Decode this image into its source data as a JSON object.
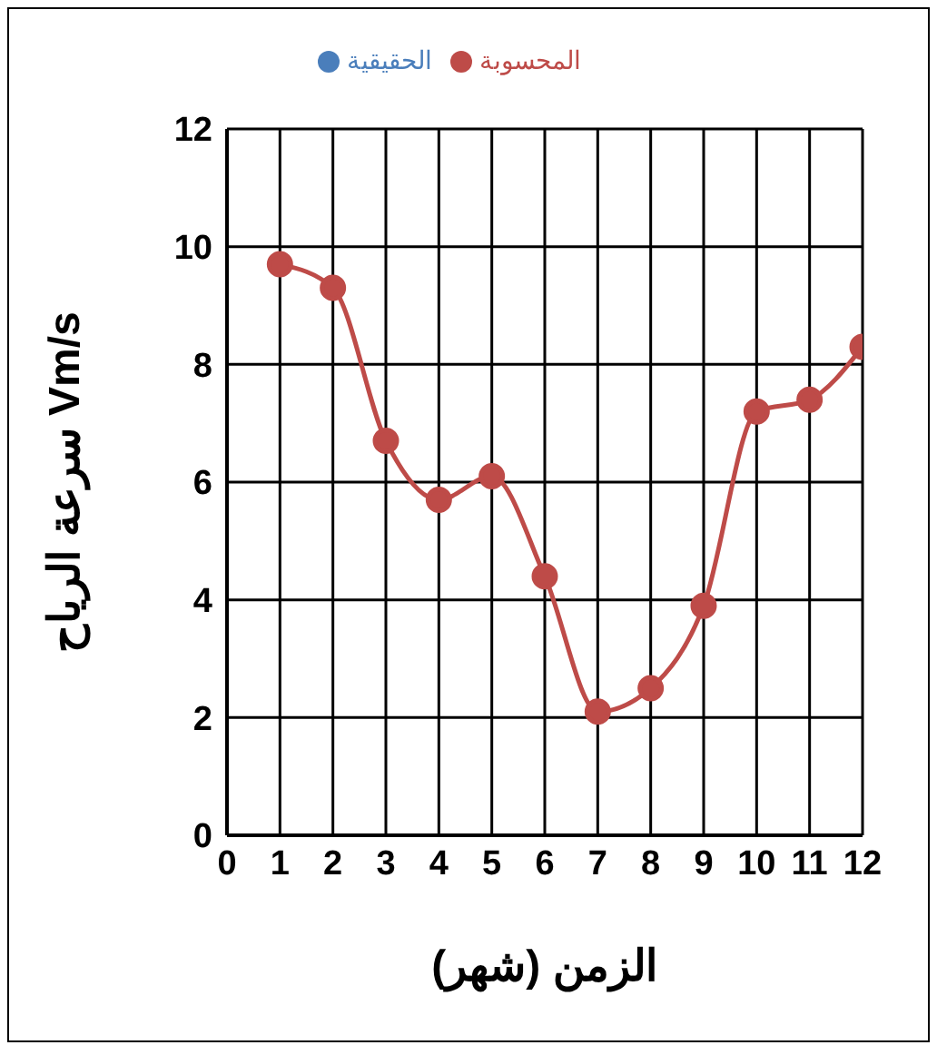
{
  "chart_data": {
    "type": "line",
    "xlabel": "الزمن (شهر)",
    "ylabel": "سرعة الرياح Vm/s",
    "x": [
      1,
      2,
      3,
      4,
      5,
      6,
      7,
      8,
      9,
      10,
      11,
      12
    ],
    "series": [
      {
        "name": "الحقيقية",
        "color": "#4a7ebb",
        "values": [
          null,
          null,
          null,
          null,
          null,
          null,
          null,
          null,
          null,
          null,
          null,
          null
        ]
      },
      {
        "name": "المحسوبة",
        "color": "#be4b48",
        "values": [
          9.7,
          9.3,
          6.7,
          5.7,
          6.1,
          4.4,
          2.1,
          2.5,
          3.9,
          7.2,
          7.4,
          8.3
        ]
      }
    ],
    "xlim": [
      0,
      12
    ],
    "xticks": [
      0,
      1,
      2,
      3,
      4,
      5,
      6,
      7,
      8,
      9,
      10,
      11,
      12
    ],
    "ylim": [
      0,
      12
    ],
    "yticks": [
      0,
      2,
      4,
      6,
      8,
      10,
      12
    ],
    "grid": true,
    "legend": "top",
    "marker": "circle",
    "line_style": "solid"
  }
}
